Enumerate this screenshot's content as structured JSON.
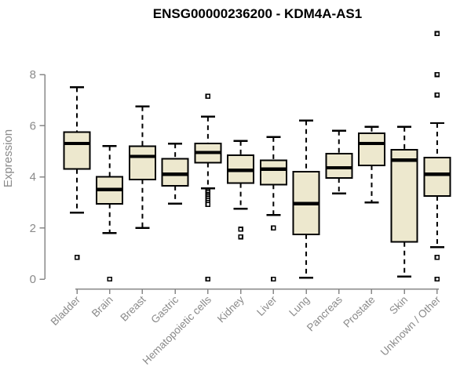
{
  "chart_data": {
    "type": "boxplot",
    "title": "ENSG00000236200 - KDM4A-AS1",
    "ylabel": "Expression",
    "xlabel": "",
    "ylim": [
      0,
      9.7
    ],
    "yticks": [
      0,
      2,
      4,
      6,
      8
    ],
    "grid": false,
    "legend": null,
    "categories": [
      "Bladder",
      "Brain",
      "Breast",
      "Gastric",
      "Hematopoietic cells",
      "Kidney",
      "Liver",
      "Lung",
      "Pancreas",
      "Prostate",
      "Skin",
      "Unknown / Other"
    ],
    "boxes": [
      {
        "category": "Bladder",
        "whisker_low": 2.6,
        "q1": 4.3,
        "median": 5.3,
        "q3": 5.75,
        "whisker_high": 7.5,
        "outliers": [
          0.85
        ]
      },
      {
        "category": "Brain",
        "whisker_low": 1.8,
        "q1": 2.95,
        "median": 3.5,
        "q3": 4.0,
        "whisker_high": 5.2,
        "outliers": [
          0
        ]
      },
      {
        "category": "Breast",
        "whisker_low": 2.0,
        "q1": 3.9,
        "median": 4.8,
        "q3": 5.2,
        "whisker_high": 6.75,
        "outliers": []
      },
      {
        "category": "Gastric",
        "whisker_low": 2.95,
        "q1": 3.65,
        "median": 4.1,
        "q3": 4.7,
        "whisker_high": 5.3,
        "outliers": []
      },
      {
        "category": "Hematopoietic cells",
        "whisker_low": 3.55,
        "q1": 4.55,
        "median": 4.95,
        "q3": 5.3,
        "whisker_high": 6.35,
        "outliers": [
          7.15,
          3.45,
          3.38,
          3.3,
          3.22,
          3.15,
          3.08,
          3.0,
          2.92,
          0
        ]
      },
      {
        "category": "Kidney",
        "whisker_low": 2.75,
        "q1": 3.75,
        "median": 4.25,
        "q3": 4.85,
        "whisker_high": 5.4,
        "outliers": [
          1.95,
          1.65
        ]
      },
      {
        "category": "Liver",
        "whisker_low": 2.5,
        "q1": 3.7,
        "median": 4.3,
        "q3": 4.65,
        "whisker_high": 5.55,
        "outliers": [
          2.0,
          0
        ]
      },
      {
        "category": "Lung",
        "whisker_low": 0.05,
        "q1": 1.75,
        "median": 2.95,
        "q3": 4.2,
        "whisker_high": 6.2,
        "outliers": []
      },
      {
        "category": "Pancreas",
        "whisker_low": 3.35,
        "q1": 3.95,
        "median": 4.35,
        "q3": 4.9,
        "whisker_high": 5.8,
        "outliers": []
      },
      {
        "category": "Prostate",
        "whisker_low": 3.0,
        "q1": 4.45,
        "median": 5.3,
        "q3": 5.7,
        "whisker_high": 5.95,
        "outliers": []
      },
      {
        "category": "Skin",
        "whisker_low": 0.1,
        "q1": 1.45,
        "median": 4.65,
        "q3": 5.05,
        "whisker_high": 5.95,
        "outliers": []
      },
      {
        "category": "Unknown / Other",
        "whisker_low": 1.25,
        "q1": 3.25,
        "median": 4.1,
        "q3": 4.75,
        "whisker_high": 6.1,
        "outliers": [
          9.6,
          8.0,
          7.2,
          0.85,
          0
        ]
      }
    ],
    "colors": {
      "box_fill": "#EDE8CE",
      "box_border": "#000000",
      "median": "#000000",
      "whisker": "#000000",
      "outlier_border": "#000000",
      "outlier_fill": "#FFFFFF",
      "axis": "#888888",
      "tick_label": "#8A8A8A",
      "title": "#000000",
      "background": "#FFFFFF"
    }
  }
}
